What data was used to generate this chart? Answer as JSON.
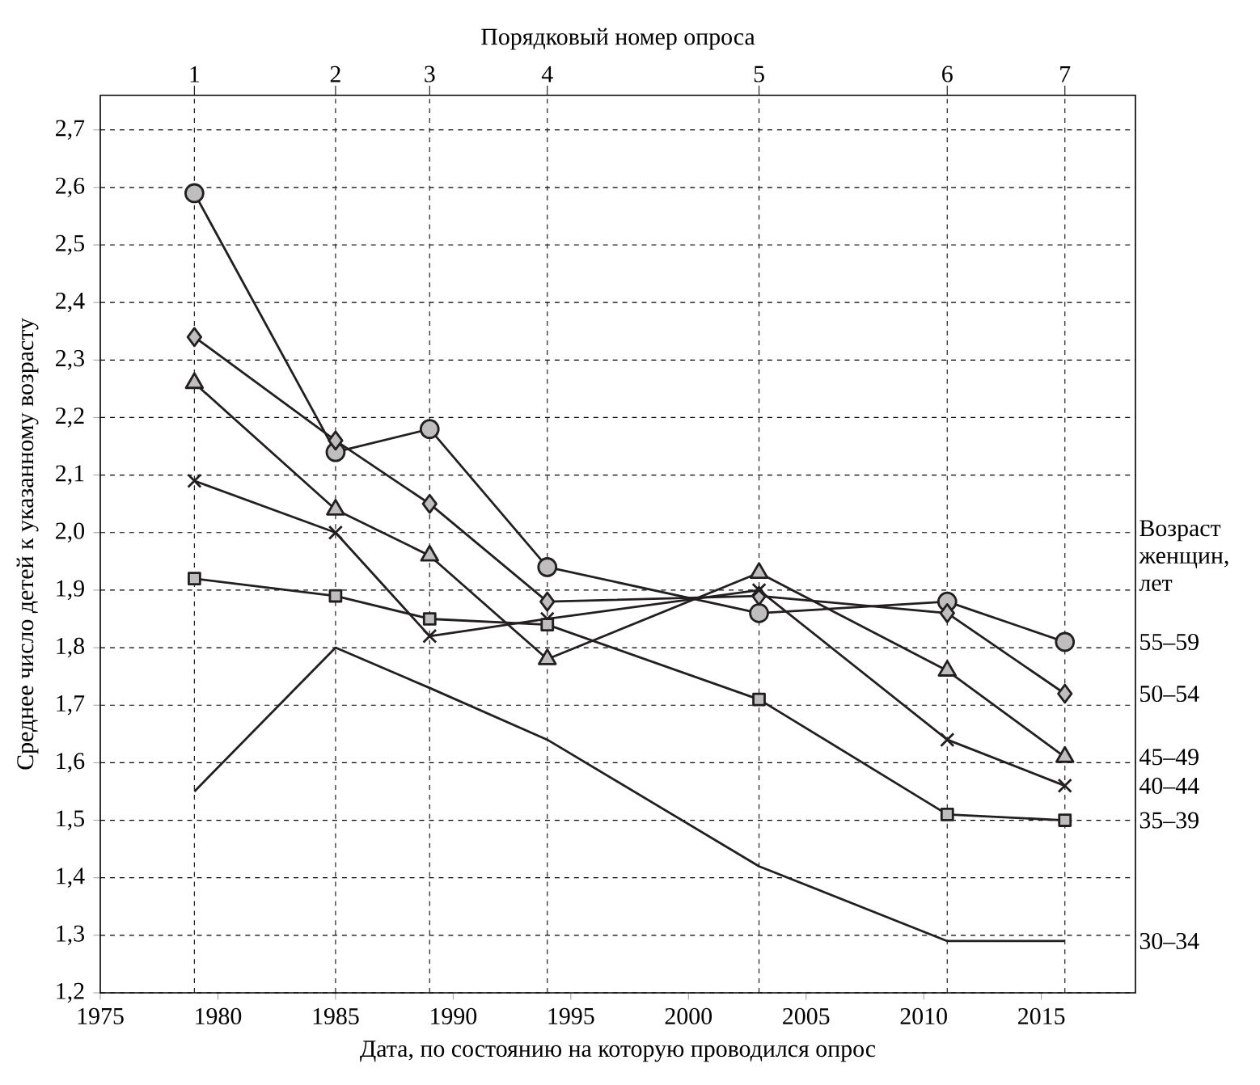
{
  "chart_data": {
    "type": "line",
    "xlabel": "Дата, по состоянию на которую проводился опрос",
    "ylabel": "Среднее число детей к указанному возрасту",
    "x2label": "Порядковый номер опроса",
    "legend_title": "Возраст женщин, лет",
    "x": [
      1979,
      1985,
      1989,
      1994,
      2003,
      2011,
      2016
    ],
    "xlim": [
      1975,
      2019
    ],
    "ylim": [
      1.2,
      2.76
    ],
    "xticks": [
      1975,
      1980,
      1985,
      1990,
      1995,
      2000,
      2005,
      2010,
      2015
    ],
    "ref_lines": [
      {
        "axis": "x",
        "value": 1979,
        "line_style": "dashed",
        "color": "#231f20"
      },
      {
        "axis": "x",
        "value": 1985,
        "line_style": "dashed",
        "color": "#231f20"
      },
      {
        "axis": "x",
        "value": 1989,
        "line_style": "dashed",
        "color": "#231f20"
      },
      {
        "axis": "x",
        "value": 1994,
        "line_style": "dashed",
        "color": "#231f20"
      },
      {
        "axis": "x",
        "value": 2003,
        "line_style": "dashed",
        "color": "#231f20"
      },
      {
        "axis": "x",
        "value": 2011,
        "line_style": "dashed",
        "color": "#231f20"
      },
      {
        "axis": "x",
        "value": 2016,
        "line_style": "dashed",
        "color": "#231f20"
      }
    ],
    "annotations": [
      "1",
      "2",
      "3",
      "4",
      "5",
      "6",
      "7"
    ],
    "yticks": [
      {
        "value": 1.2,
        "label": "1,2"
      },
      {
        "value": 1.3,
        "label": "1,3"
      },
      {
        "value": 1.4,
        "label": "1,4"
      },
      {
        "value": 1.5,
        "label": "1,5"
      },
      {
        "value": 1.6,
        "label": "1,6"
      },
      {
        "value": 1.7,
        "label": "1,7"
      },
      {
        "value": 1.8,
        "label": "1,8"
      },
      {
        "value": 1.9,
        "label": "1,9"
      },
      {
        "value": 2.0,
        "label": "2,0"
      },
      {
        "value": 2.1,
        "label": "2,1"
      },
      {
        "value": 2.2,
        "label": "2,2"
      },
      {
        "value": 2.3,
        "label": "2,3"
      },
      {
        "value": 2.4,
        "label": "2,4"
      },
      {
        "value": 2.5,
        "label": "2,5"
      },
      {
        "value": 2.6,
        "label": "2,6"
      },
      {
        "value": 2.7,
        "label": "2,7"
      }
    ],
    "grid": "y",
    "line_style": "solid",
    "series": [
      {
        "name": "55–59",
        "color": "#231f20",
        "marker": "circle",
        "values": [
          2.59,
          2.14,
          2.18,
          1.94,
          1.86,
          1.88,
          1.81
        ]
      },
      {
        "name": "50–54",
        "color": "#231f20",
        "marker": "diamond",
        "values": [
          2.34,
          2.16,
          2.05,
          1.88,
          1.89,
          1.86,
          1.72
        ]
      },
      {
        "name": "45–49",
        "color": "#231f20",
        "marker": "triangle",
        "values": [
          2.26,
          2.04,
          1.96,
          1.78,
          1.93,
          1.76,
          1.61
        ]
      },
      {
        "name": "40–44",
        "color": "#231f20",
        "marker": "cross",
        "values": [
          2.09,
          2.0,
          1.82,
          1.85,
          1.9,
          1.64,
          1.56
        ]
      },
      {
        "name": "35–39",
        "color": "#231f20",
        "marker": "square",
        "values": [
          1.92,
          1.89,
          1.85,
          1.84,
          1.71,
          1.51,
          1.5
        ]
      },
      {
        "name": "30–34",
        "color": "#231f20",
        "marker": "none",
        "values": [
          1.55,
          1.8,
          1.73,
          1.64,
          1.42,
          1.29,
          1.29
        ]
      }
    ]
  }
}
